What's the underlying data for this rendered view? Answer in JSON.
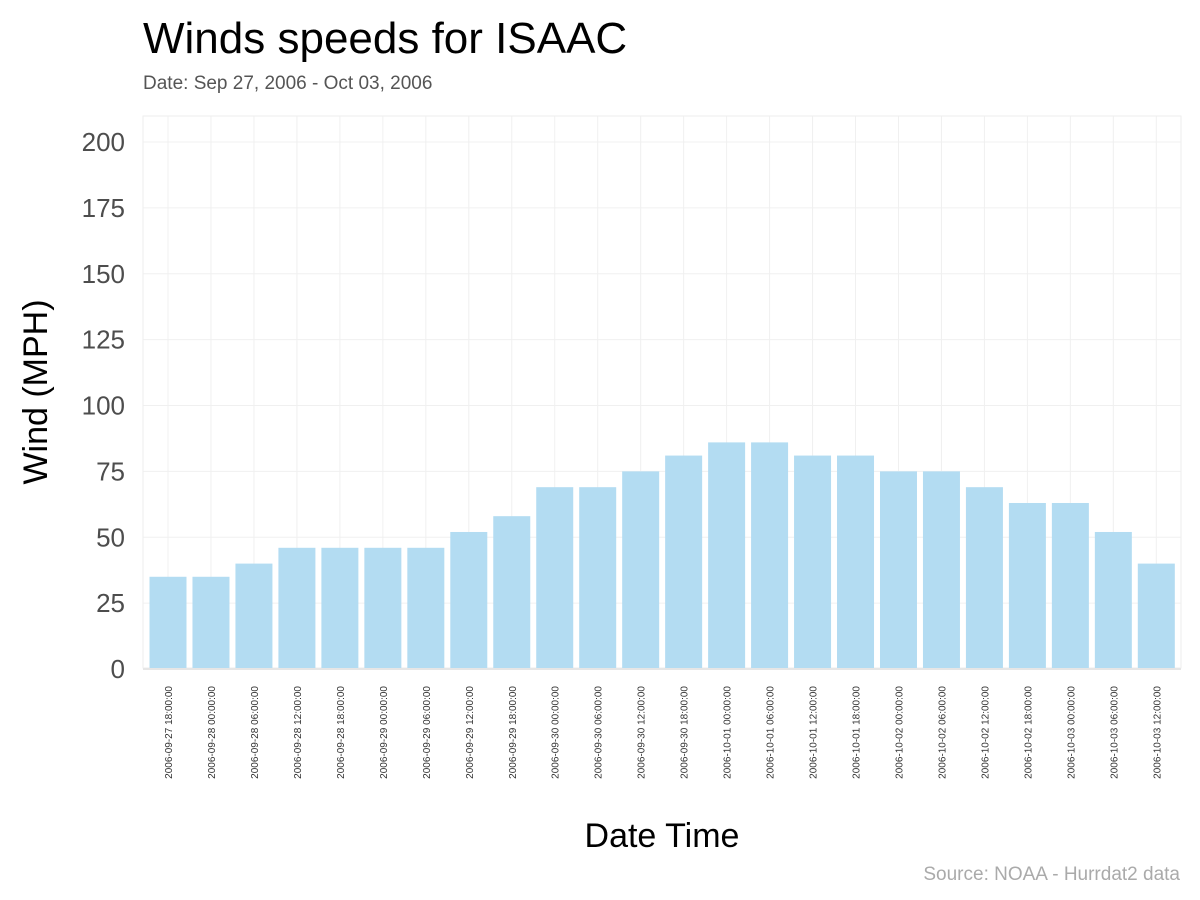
{
  "chart_data": {
    "type": "bar",
    "title": "Winds speeds for ISAAC",
    "subtitle": "Date:  Sep 27, 2006 - Oct 03, 2006",
    "xlabel": "Date Time",
    "ylabel": "Wind (MPH)",
    "caption": "Source: NOAA - Hurrdat2 data",
    "ylim": [
      0,
      210
    ],
    "yticks": [
      "0",
      "25",
      "50",
      "75",
      "100",
      "125",
      "150",
      "175",
      "200"
    ],
    "grid": true,
    "bar_color": "#b3dcf2",
    "categories": [
      "2006-09-27 18:00:00",
      "2006-09-28 00:00:00",
      "2006-09-28 06:00:00",
      "2006-09-28 12:00:00",
      "2006-09-28 18:00:00",
      "2006-09-29 00:00:00",
      "2006-09-29 06:00:00",
      "2006-09-29 12:00:00",
      "2006-09-29 18:00:00",
      "2006-09-30 00:00:00",
      "2006-09-30 06:00:00",
      "2006-09-30 12:00:00",
      "2006-09-30 18:00:00",
      "2006-10-01 00:00:00",
      "2006-10-01 06:00:00",
      "2006-10-01 12:00:00",
      "2006-10-01 18:00:00",
      "2006-10-02 00:00:00",
      "2006-10-02 06:00:00",
      "2006-10-02 12:00:00",
      "2006-10-02 18:00:00",
      "2006-10-03 00:00:00",
      "2006-10-03 06:00:00",
      "2006-10-03 12:00:00"
    ],
    "values": [
      35,
      35,
      40,
      46,
      46,
      46,
      46,
      52,
      58,
      69,
      69,
      75,
      81,
      86,
      86,
      81,
      81,
      75,
      75,
      69,
      63,
      63,
      52,
      40
    ]
  }
}
